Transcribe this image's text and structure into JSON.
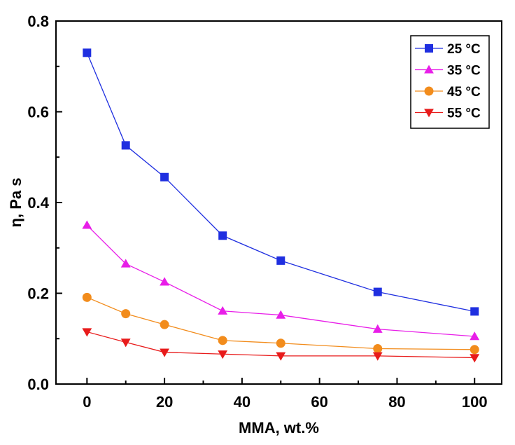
{
  "chart_data": {
    "type": "line",
    "xlabel": "MMA, wt.%",
    "ylabel": "η, Pa s",
    "xlim": [
      -8,
      107
    ],
    "ylim": [
      0.0,
      0.8
    ],
    "xticks": [
      0,
      20,
      40,
      60,
      80,
      100
    ],
    "yticks": [
      0.0,
      0.2,
      0.4,
      0.6,
      0.8
    ],
    "ytick_labels": [
      "0.0",
      "0.2",
      "0.4",
      "0.6",
      "0.8"
    ],
    "grid": false,
    "legend_position": "top-right",
    "x": [
      0,
      10,
      20,
      35,
      50,
      75,
      100
    ],
    "series": [
      {
        "name": "25 °C",
        "color": "#1f2fe0",
        "marker": "square",
        "values": [
          0.73,
          0.526,
          0.456,
          0.327,
          0.272,
          0.203,
          0.16
        ]
      },
      {
        "name": "35 °C",
        "color": "#e81ee8",
        "marker": "triangle-up",
        "values": [
          0.35,
          0.265,
          0.225,
          0.161,
          0.152,
          0.121,
          0.105
        ]
      },
      {
        "name": "45 °C",
        "color": "#f28c1c",
        "marker": "circle",
        "values": [
          0.191,
          0.155,
          0.131,
          0.096,
          0.09,
          0.078,
          0.076
        ]
      },
      {
        "name": "55 °C",
        "color": "#e81b1b",
        "marker": "triangle-down",
        "values": [
          0.115,
          0.092,
          0.07,
          0.066,
          0.062,
          0.062,
          0.058
        ]
      }
    ]
  }
}
